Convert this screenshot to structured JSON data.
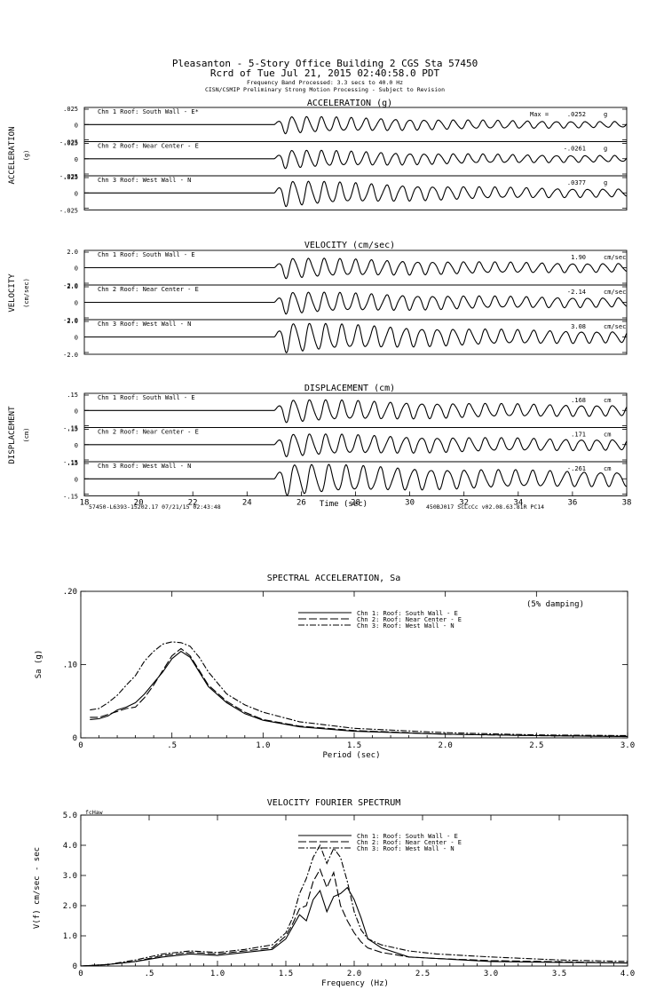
{
  "header": {
    "line1": "Pleasanton - 5-Story Office Building 2      CGS Sta 57450",
    "line2": "Rcrd of Tue Jul 21, 2015 02:40:58.0 PDT",
    "line3": "Frequency Band Processed: 3.3 secs to 40.0 Hz",
    "line4": "CISN/CSMIP Preliminary Strong Motion Processing - Subject to Revision"
  },
  "footer": {
    "left": "57450-L6393-15202.17 07/21/15 02:43:48",
    "right": "450BJ017  ScLcCc  v02.08.63.81R PC14",
    "time_label": "Time (sec)"
  },
  "max_label": "Max =",
  "chart_data": [
    {
      "type": "line",
      "title": "ACCELERATION (g)",
      "ylabel": "ACCELERATION",
      "yunit": "(g)",
      "unit": "g",
      "tick_labels": [
        ".025",
        "0",
        "-.025"
      ],
      "ylim": [
        -0.025,
        0.025
      ],
      "xlim": [
        18,
        38
      ],
      "xticks": [
        "18",
        "20",
        "22",
        "24",
        "26",
        "28",
        "30",
        "32",
        "34",
        "36",
        "38"
      ],
      "series": [
        {
          "name": "Chn 1  Roof: South Wall - E*",
          "max": ".0252",
          "onset": 25.0,
          "amp": 0.014,
          "freq": 1.85,
          "decay": 0.14,
          "floor": 0.18
        },
        {
          "name": "Chn 2  Roof: Near Center - E",
          "max": "-.0261",
          "onset": 25.0,
          "amp": 0.015,
          "freq": 1.85,
          "decay": 0.14,
          "floor": 0.18
        },
        {
          "name": "Chn 3  Roof: West Wall - N",
          "max": ".0377",
          "onset": 25.0,
          "amp": 0.021,
          "freq": 1.75,
          "decay": 0.15,
          "floor": 0.16
        }
      ]
    },
    {
      "type": "line",
      "title": "VELOCITY (cm/sec)",
      "ylabel": "VELOCITY",
      "yunit": "(cm/sec)",
      "unit": "cm/sec",
      "tick_labels": [
        "2.0",
        "0",
        "-2.0"
      ],
      "ylim": [
        -2.0,
        2.0
      ],
      "xlim": [
        18,
        38
      ],
      "series": [
        {
          "name": "Chn 1  Roof: South Wall - E",
          "max": "1.90",
          "onset": 25.0,
          "amp": 1.3,
          "freq": 1.75,
          "decay": 0.13,
          "floor": 0.25
        },
        {
          "name": "Chn 2  Roof: Near Center - E",
          "max": "-2.14",
          "onset": 25.0,
          "amp": 1.4,
          "freq": 1.75,
          "decay": 0.13,
          "floor": 0.25
        },
        {
          "name": "Chn 3  Roof: West Wall - N",
          "max": "3.08",
          "onset": 25.0,
          "amp": 1.9,
          "freq": 1.7,
          "decay": 0.14,
          "floor": 0.22
        }
      ]
    },
    {
      "type": "line",
      "title": "DISPLACEMENT (cm)",
      "ylabel": "DISPLACEMENT",
      "yunit": "(cm)",
      "unit": "cm",
      "tick_labels": [
        ".15",
        "0",
        "-.15"
      ],
      "ylim": [
        -0.15,
        0.15
      ],
      "xlim": [
        18,
        38
      ],
      "series": [
        {
          "name": "Chn 1  Roof: South Wall - E",
          "max": ".168",
          "onset": 25.0,
          "amp": 0.11,
          "freq": 1.7,
          "decay": 0.12,
          "floor": 0.28
        },
        {
          "name": "Chn 2  Roof: Near Center - E",
          "max": ".171",
          "onset": 25.0,
          "amp": 0.11,
          "freq": 1.7,
          "decay": 0.12,
          "floor": 0.28
        },
        {
          "name": "Chn 3  Roof: West Wall - N",
          "max": "-.261",
          "onset": 25.0,
          "amp": 0.15,
          "freq": 1.6,
          "decay": 0.13,
          "floor": 0.3
        }
      ]
    },
    {
      "type": "line",
      "title": "SPECTRAL ACCELERATION, Sa",
      "ylabel": "Sa (g)",
      "xlabel": "Period (sec)",
      "annotation": "(5% damping)",
      "xlim": [
        0,
        3.0
      ],
      "ylim": [
        0,
        0.2
      ],
      "xticks": [
        "0",
        ".5",
        "1.0",
        "1.5",
        "2.0",
        "2.5",
        "3.0"
      ],
      "yticks": [
        "0",
        ".10",
        ".20"
      ],
      "series": [
        {
          "name": "Chn 1: Roof: South Wall - E",
          "dash": "",
          "x": [
            0.05,
            0.1,
            0.15,
            0.2,
            0.25,
            0.3,
            0.35,
            0.4,
            0.45,
            0.5,
            0.55,
            0.6,
            0.65,
            0.7,
            0.8,
            0.9,
            1.0,
            1.2,
            1.5,
            2.0,
            2.5,
            3.0
          ],
          "y": [
            0.025,
            0.026,
            0.03,
            0.038,
            0.042,
            0.048,
            0.06,
            0.075,
            0.09,
            0.108,
            0.118,
            0.11,
            0.09,
            0.07,
            0.048,
            0.033,
            0.024,
            0.015,
            0.009,
            0.005,
            0.003,
            0.002
          ]
        },
        {
          "name": "Chn 2: Roof: Near Center - E",
          "dash": "9,3",
          "x": [
            0.05,
            0.1,
            0.15,
            0.2,
            0.25,
            0.3,
            0.35,
            0.4,
            0.45,
            0.5,
            0.55,
            0.6,
            0.65,
            0.7,
            0.8,
            0.9,
            1.0,
            1.2,
            1.5,
            2.0,
            2.5,
            3.0
          ],
          "y": [
            0.028,
            0.028,
            0.032,
            0.036,
            0.04,
            0.042,
            0.055,
            0.072,
            0.092,
            0.112,
            0.122,
            0.112,
            0.092,
            0.072,
            0.05,
            0.035,
            0.025,
            0.016,
            0.01,
            0.005,
            0.003,
            0.002
          ]
        },
        {
          "name": "Chn 3: Roof: West Wall - N",
          "dash": "7,2,2,2",
          "x": [
            0.05,
            0.1,
            0.15,
            0.2,
            0.25,
            0.3,
            0.35,
            0.4,
            0.45,
            0.5,
            0.55,
            0.6,
            0.65,
            0.7,
            0.8,
            0.9,
            1.0,
            1.2,
            1.5,
            2.0,
            2.5,
            3.0
          ],
          "y": [
            0.038,
            0.04,
            0.048,
            0.058,
            0.072,
            0.085,
            0.105,
            0.118,
            0.128,
            0.131,
            0.13,
            0.125,
            0.11,
            0.09,
            0.06,
            0.045,
            0.035,
            0.022,
            0.013,
            0.007,
            0.004,
            0.003
          ]
        }
      ]
    },
    {
      "type": "line",
      "title": "VELOCITY FOURIER SPECTRUM",
      "ylabel": "V(f)  cm/sec - sec",
      "xlabel": "Frequency (Hz)",
      "corner_label": "fcHaw",
      "xlim": [
        0,
        4.0
      ],
      "ylim": [
        0,
        5.0
      ],
      "xticks": [
        "0",
        ".5",
        "1.0",
        "1.5",
        "2.0",
        "2.5",
        "3.0",
        "3.5",
        "4.0"
      ],
      "yticks": [
        "0",
        "1.0",
        "2.0",
        "3.0",
        "4.0",
        "5.0"
      ],
      "series": [
        {
          "name": "Chn 1: Roof: South Wall - E",
          "dash": "",
          "x": [
            0,
            0.2,
            0.4,
            0.6,
            0.8,
            1.0,
            1.2,
            1.4,
            1.5,
            1.55,
            1.6,
            1.65,
            1.7,
            1.75,
            1.8,
            1.85,
            1.9,
            1.95,
            2.0,
            2.05,
            2.1,
            2.2,
            2.4,
            2.6,
            3.0,
            3.5,
            4.0
          ],
          "y": [
            0,
            0.05,
            0.15,
            0.3,
            0.4,
            0.35,
            0.45,
            0.55,
            0.9,
            1.3,
            1.7,
            1.5,
            2.2,
            2.5,
            1.8,
            2.3,
            2.4,
            2.6,
            2.2,
            1.6,
            0.9,
            0.6,
            0.3,
            0.25,
            0.15,
            0.12,
            0.1
          ]
        },
        {
          "name": "Chn 2: Roof: Near Center - E",
          "dash": "9,3",
          "x": [
            0,
            0.2,
            0.4,
            0.6,
            0.8,
            1.0,
            1.2,
            1.4,
            1.5,
            1.55,
            1.6,
            1.65,
            1.7,
            1.75,
            1.8,
            1.85,
            1.9,
            1.95,
            2.0,
            2.05,
            2.1,
            2.2,
            2.4,
            2.6,
            3.0,
            3.5,
            4.0
          ],
          "y": [
            0,
            0.05,
            0.15,
            0.35,
            0.45,
            0.4,
            0.5,
            0.6,
            1.0,
            1.4,
            1.9,
            2.0,
            2.8,
            3.2,
            2.6,
            3.1,
            2.0,
            1.5,
            1.1,
            0.8,
            0.6,
            0.45,
            0.3,
            0.25,
            0.18,
            0.14,
            0.1
          ]
        },
        {
          "name": "Chn 3: Roof: West Wall - N",
          "dash": "7,2,2,2",
          "x": [
            0,
            0.2,
            0.4,
            0.6,
            0.8,
            1.0,
            1.2,
            1.4,
            1.5,
            1.55,
            1.6,
            1.65,
            1.7,
            1.75,
            1.8,
            1.85,
            1.9,
            1.95,
            2.0,
            2.05,
            2.1,
            2.2,
            2.4,
            2.6,
            3.0,
            3.5,
            4.0
          ],
          "y": [
            0,
            0.05,
            0.2,
            0.4,
            0.5,
            0.45,
            0.55,
            0.7,
            1.1,
            1.6,
            2.4,
            2.9,
            3.6,
            4.0,
            3.4,
            3.9,
            3.6,
            2.8,
            1.8,
            1.2,
            0.9,
            0.7,
            0.5,
            0.4,
            0.3,
            0.2,
            0.15
          ]
        }
      ]
    }
  ]
}
